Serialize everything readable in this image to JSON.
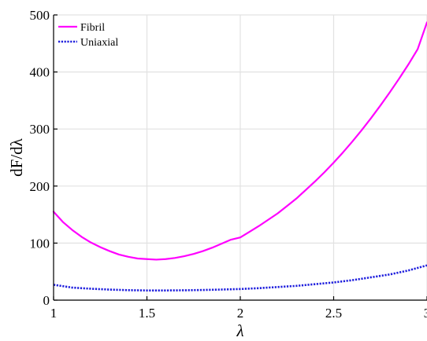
{
  "chart_data": {
    "type": "line",
    "xlabel": "λ",
    "ylabel": "dF/dλ",
    "xlim": [
      1,
      3
    ],
    "ylim": [
      0,
      500
    ],
    "xticks": [
      1,
      1.5,
      2,
      2.5,
      3
    ],
    "yticks": [
      0,
      100,
      200,
      300,
      400,
      500
    ],
    "grid": true,
    "legend_position": "top-left",
    "series": [
      {
        "name": "Fibril",
        "color": "#ff00ff",
        "style": "solid",
        "x": [
          1,
          1.05,
          1.1,
          1.15,
          1.2,
          1.25,
          1.3,
          1.35,
          1.4,
          1.45,
          1.5,
          1.55,
          1.6,
          1.65,
          1.7,
          1.75,
          1.8,
          1.85,
          1.9,
          1.95,
          2,
          2.05,
          2.1,
          2.15,
          2.2,
          2.25,
          2.3,
          2.35,
          2.4,
          2.45,
          2.5,
          2.55,
          2.6,
          2.65,
          2.7,
          2.75,
          2.8,
          2.85,
          2.9,
          2.95,
          3
        ],
        "values": [
          155,
          137,
          123,
          111,
          101,
          93,
          86,
          80,
          76,
          73,
          72,
          71,
          72,
          74,
          77,
          81,
          86,
          92,
          99,
          106,
          110,
          120,
          130,
          141,
          152,
          165,
          178,
          193,
          208,
          224,
          241,
          259,
          278,
          298,
          319,
          341,
          364,
          388,
          413,
          440,
          487
        ]
      },
      {
        "name": "Uniaxial",
        "color": "#1f1fdd",
        "style": "dotted",
        "x": [
          1,
          1.1,
          1.2,
          1.3,
          1.4,
          1.5,
          1.6,
          1.7,
          1.8,
          1.9,
          2,
          2.1,
          2.2,
          2.3,
          2.4,
          2.5,
          2.6,
          2.7,
          2.8,
          2.9,
          3
        ],
        "values": [
          27,
          22,
          20,
          18.5,
          17.5,
          17,
          17,
          17.3,
          17.8,
          18.6,
          19.5,
          21,
          23,
          25,
          28,
          31,
          35,
          40,
          45,
          52,
          61
        ]
      }
    ]
  }
}
